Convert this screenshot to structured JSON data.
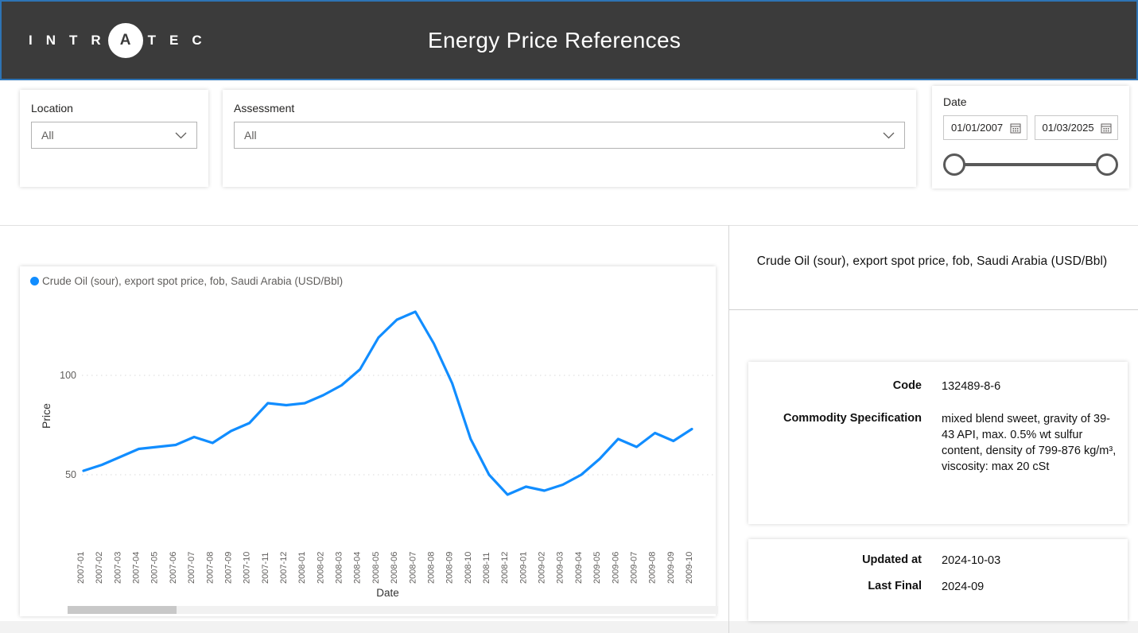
{
  "header": {
    "logo_prefix": "INTR",
    "logo_circle": "A",
    "logo_suffix": "TEC",
    "title": "Energy Price References"
  },
  "filters": {
    "location": {
      "label": "Location",
      "value": "All"
    },
    "assessment": {
      "label": "Assessment",
      "value": "All"
    },
    "date": {
      "label": "Date",
      "start": "01/01/2007",
      "end": "01/03/2025"
    }
  },
  "chart_data": {
    "type": "line",
    "legend": "Crude Oil (sour), export spot price, fob, Saudi Arabia (USD/Bbl)",
    "xlabel": "Date",
    "ylabel": "Price",
    "yticks": [
      50,
      100
    ],
    "ylim": [
      28,
      140
    ],
    "grid": "dotted-horizontal",
    "legend_position": "top-left",
    "line_color": "#118DFF",
    "x": [
      "2007-01",
      "2007-02",
      "2007-03",
      "2007-04",
      "2007-05",
      "2007-06",
      "2007-07",
      "2007-08",
      "2007-09",
      "2007-10",
      "2007-11",
      "2007-12",
      "2008-01",
      "2008-02",
      "2008-03",
      "2008-04",
      "2008-05",
      "2008-06",
      "2008-07",
      "2008-08",
      "2008-09",
      "2008-10",
      "2008-11",
      "2008-12",
      "2009-01",
      "2009-02",
      "2009-03",
      "2009-04",
      "2009-05",
      "2009-06",
      "2009-07",
      "2009-08",
      "2009-09",
      "2009-10"
    ],
    "values": [
      52,
      55,
      59,
      63,
      64,
      65,
      69,
      66,
      72,
      76,
      86,
      85,
      86,
      90,
      95,
      103,
      119,
      128,
      132,
      116,
      96,
      68,
      50,
      40,
      44,
      42,
      45,
      50,
      58,
      68,
      64,
      71,
      67,
      73
    ]
  },
  "details": {
    "title": "Crude Oil (sour), export spot price, fob, Saudi Arabia (USD/Bbl)",
    "fields": [
      {
        "label": "Code",
        "value": "132489-8-6"
      },
      {
        "label": "Commodity Specification",
        "value": "mixed blend sweet, gravity of 39-43 API, max. 0.5% wt sulfur content, density of 799-876 kg/m³, viscosity: max 20 cSt"
      }
    ],
    "meta": [
      {
        "label": "Updated at",
        "value": "2024-10-03"
      },
      {
        "label": "Last Final",
        "value": "2024-09"
      }
    ]
  },
  "colors": {
    "header_bg": "#3b3b3b",
    "accent_blue": "#2e74b5",
    "line_blue": "#118DFF",
    "text_primary": "#252423",
    "text_secondary": "#605e5c"
  }
}
